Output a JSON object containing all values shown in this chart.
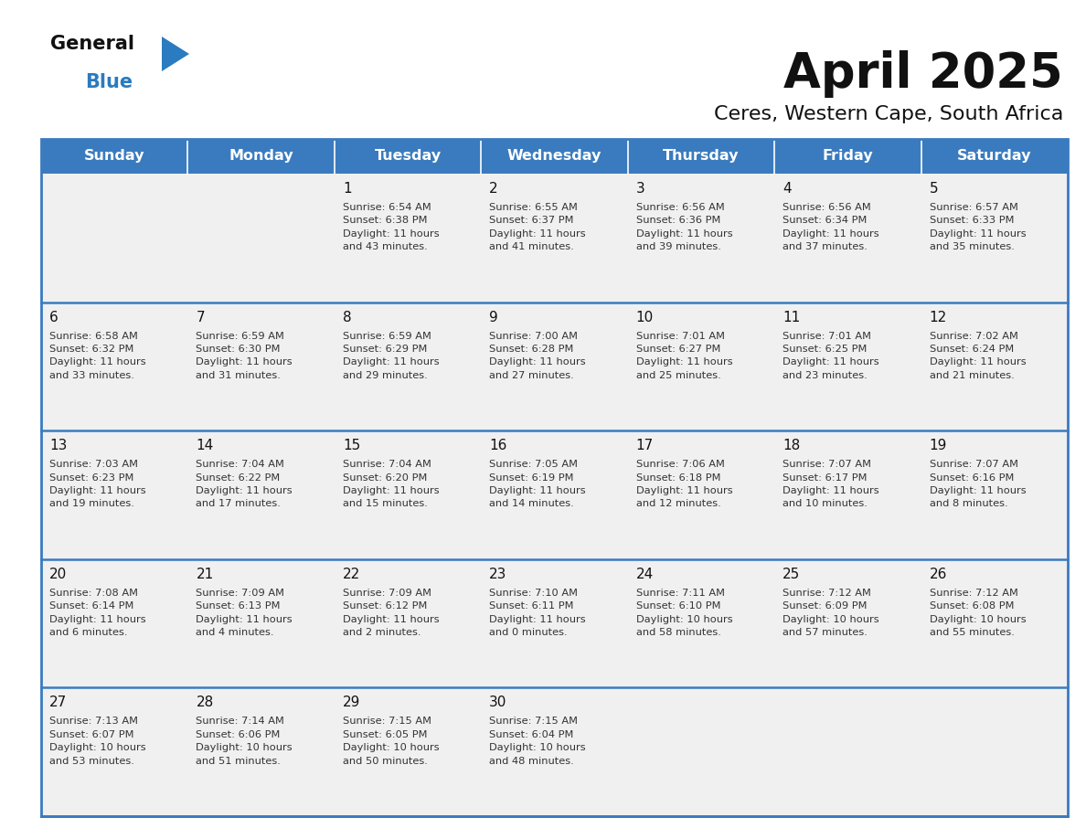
{
  "title": "April 2025",
  "subtitle": "Ceres, Western Cape, South Africa",
  "days_of_week": [
    "Sunday",
    "Monday",
    "Tuesday",
    "Wednesday",
    "Thursday",
    "Friday",
    "Saturday"
  ],
  "header_bg": "#3a7bbf",
  "header_text": "#ffffff",
  "row_bg": "#f0f0f0",
  "cell_text_color": "#333333",
  "day_number_color": "#111111",
  "border_color": "#3a7bbf",
  "sep_line_color": "#3a7bbf",
  "logo_color1": "#111111",
  "logo_color2": "#2a7bbf",
  "logo_triangle_color": "#2a7bbf",
  "weeks": [
    [
      {
        "day": "",
        "info": ""
      },
      {
        "day": "",
        "info": ""
      },
      {
        "day": "1",
        "info": "Sunrise: 6:54 AM\nSunset: 6:38 PM\nDaylight: 11 hours\nand 43 minutes."
      },
      {
        "day": "2",
        "info": "Sunrise: 6:55 AM\nSunset: 6:37 PM\nDaylight: 11 hours\nand 41 minutes."
      },
      {
        "day": "3",
        "info": "Sunrise: 6:56 AM\nSunset: 6:36 PM\nDaylight: 11 hours\nand 39 minutes."
      },
      {
        "day": "4",
        "info": "Sunrise: 6:56 AM\nSunset: 6:34 PM\nDaylight: 11 hours\nand 37 minutes."
      },
      {
        "day": "5",
        "info": "Sunrise: 6:57 AM\nSunset: 6:33 PM\nDaylight: 11 hours\nand 35 minutes."
      }
    ],
    [
      {
        "day": "6",
        "info": "Sunrise: 6:58 AM\nSunset: 6:32 PM\nDaylight: 11 hours\nand 33 minutes."
      },
      {
        "day": "7",
        "info": "Sunrise: 6:59 AM\nSunset: 6:30 PM\nDaylight: 11 hours\nand 31 minutes."
      },
      {
        "day": "8",
        "info": "Sunrise: 6:59 AM\nSunset: 6:29 PM\nDaylight: 11 hours\nand 29 minutes."
      },
      {
        "day": "9",
        "info": "Sunrise: 7:00 AM\nSunset: 6:28 PM\nDaylight: 11 hours\nand 27 minutes."
      },
      {
        "day": "10",
        "info": "Sunrise: 7:01 AM\nSunset: 6:27 PM\nDaylight: 11 hours\nand 25 minutes."
      },
      {
        "day": "11",
        "info": "Sunrise: 7:01 AM\nSunset: 6:25 PM\nDaylight: 11 hours\nand 23 minutes."
      },
      {
        "day": "12",
        "info": "Sunrise: 7:02 AM\nSunset: 6:24 PM\nDaylight: 11 hours\nand 21 minutes."
      }
    ],
    [
      {
        "day": "13",
        "info": "Sunrise: 7:03 AM\nSunset: 6:23 PM\nDaylight: 11 hours\nand 19 minutes."
      },
      {
        "day": "14",
        "info": "Sunrise: 7:04 AM\nSunset: 6:22 PM\nDaylight: 11 hours\nand 17 minutes."
      },
      {
        "day": "15",
        "info": "Sunrise: 7:04 AM\nSunset: 6:20 PM\nDaylight: 11 hours\nand 15 minutes."
      },
      {
        "day": "16",
        "info": "Sunrise: 7:05 AM\nSunset: 6:19 PM\nDaylight: 11 hours\nand 14 minutes."
      },
      {
        "day": "17",
        "info": "Sunrise: 7:06 AM\nSunset: 6:18 PM\nDaylight: 11 hours\nand 12 minutes."
      },
      {
        "day": "18",
        "info": "Sunrise: 7:07 AM\nSunset: 6:17 PM\nDaylight: 11 hours\nand 10 minutes."
      },
      {
        "day": "19",
        "info": "Sunrise: 7:07 AM\nSunset: 6:16 PM\nDaylight: 11 hours\nand 8 minutes."
      }
    ],
    [
      {
        "day": "20",
        "info": "Sunrise: 7:08 AM\nSunset: 6:14 PM\nDaylight: 11 hours\nand 6 minutes."
      },
      {
        "day": "21",
        "info": "Sunrise: 7:09 AM\nSunset: 6:13 PM\nDaylight: 11 hours\nand 4 minutes."
      },
      {
        "day": "22",
        "info": "Sunrise: 7:09 AM\nSunset: 6:12 PM\nDaylight: 11 hours\nand 2 minutes."
      },
      {
        "day": "23",
        "info": "Sunrise: 7:10 AM\nSunset: 6:11 PM\nDaylight: 11 hours\nand 0 minutes."
      },
      {
        "day": "24",
        "info": "Sunrise: 7:11 AM\nSunset: 6:10 PM\nDaylight: 10 hours\nand 58 minutes."
      },
      {
        "day": "25",
        "info": "Sunrise: 7:12 AM\nSunset: 6:09 PM\nDaylight: 10 hours\nand 57 minutes."
      },
      {
        "day": "26",
        "info": "Sunrise: 7:12 AM\nSunset: 6:08 PM\nDaylight: 10 hours\nand 55 minutes."
      }
    ],
    [
      {
        "day": "27",
        "info": "Sunrise: 7:13 AM\nSunset: 6:07 PM\nDaylight: 10 hours\nand 53 minutes."
      },
      {
        "day": "28",
        "info": "Sunrise: 7:14 AM\nSunset: 6:06 PM\nDaylight: 10 hours\nand 51 minutes."
      },
      {
        "day": "29",
        "info": "Sunrise: 7:15 AM\nSunset: 6:05 PM\nDaylight: 10 hours\nand 50 minutes."
      },
      {
        "day": "30",
        "info": "Sunrise: 7:15 AM\nSunset: 6:04 PM\nDaylight: 10 hours\nand 48 minutes."
      },
      {
        "day": "",
        "info": ""
      },
      {
        "day": "",
        "info": ""
      },
      {
        "day": "",
        "info": ""
      }
    ]
  ],
  "fig_width": 11.88,
  "fig_height": 9.18,
  "dpi": 100
}
